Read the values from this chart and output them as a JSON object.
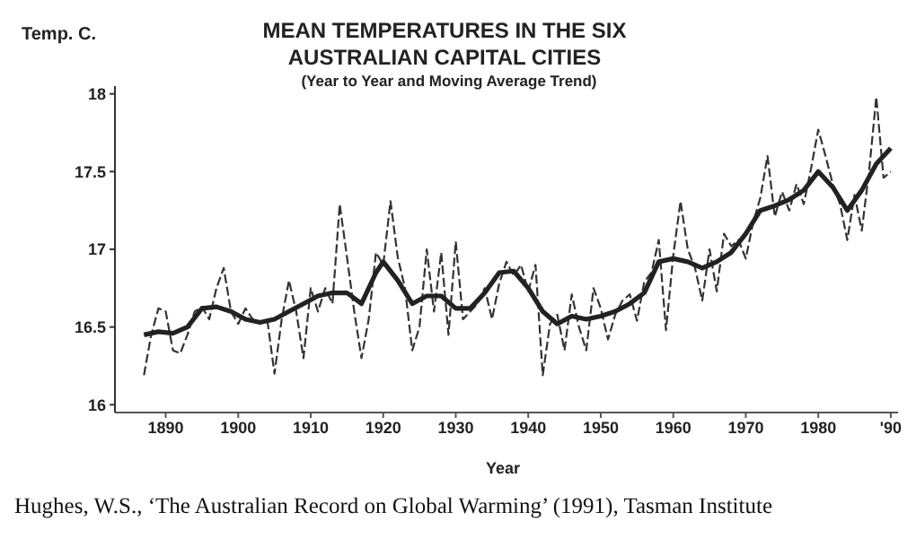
{
  "chart_data": {
    "type": "line",
    "title": "MEAN TEMPERATURES IN THE SIX AUSTRALIAN CAPITAL CITIES",
    "subtitle": "(Year to Year and Moving Average Trend)",
    "xlabel": "Year",
    "ylabel": "Temp. C.",
    "annotations": [
      "Hughes, W.S., ‘The Australian Record on Global Warming’ (1991), Tasman Institute"
    ],
    "xlim": [
      1883,
      1991
    ],
    "xticks": [
      1890,
      1900,
      1910,
      1920,
      1930,
      1940,
      1950,
      1960,
      1970,
      1980,
      {
        "value": 1990,
        "label": "'90"
      }
    ],
    "ylim": [
      15.95,
      18.05
    ],
    "yticks": [
      16,
      16.5,
      17,
      17.5,
      18
    ],
    "marker": "none",
    "series": [
      {
        "color": "#333333",
        "line_style": "dashed",
        "x": [
          1887,
          1888,
          1889,
          1890,
          1891,
          1892,
          1893,
          1894,
          1895,
          1896,
          1897,
          1898,
          1899,
          1900,
          1901,
          1902,
          1903,
          1904,
          1905,
          1906,
          1907,
          1908,
          1909,
          1910,
          1911,
          1912,
          1913,
          1914,
          1915,
          1916,
          1917,
          1918,
          1919,
          1920,
          1921,
          1922,
          1923,
          1924,
          1925,
          1926,
          1927,
          1928,
          1929,
          1930,
          1931,
          1932,
          1933,
          1934,
          1935,
          1936,
          1937,
          1938,
          1939,
          1940,
          1941,
          1942,
          1943,
          1944,
          1945,
          1946,
          1947,
          1948,
          1949,
          1950,
          1951,
          1952,
          1953,
          1954,
          1955,
          1956,
          1957,
          1958,
          1959,
          1960,
          1961,
          1962,
          1963,
          1964,
          1965,
          1966,
          1967,
          1968,
          1969,
          1970,
          1971,
          1972,
          1973,
          1974,
          1975,
          1976,
          1977,
          1978,
          1979,
          1980,
          1981,
          1982,
          1983,
          1984,
          1985,
          1986,
          1987,
          1988,
          1989,
          1990
        ],
        "values": [
          16.19,
          16.45,
          16.62,
          16.6,
          16.35,
          16.33,
          16.45,
          16.6,
          16.63,
          16.55,
          16.75,
          16.88,
          16.6,
          16.52,
          16.62,
          16.55,
          16.52,
          16.55,
          16.2,
          16.55,
          16.8,
          16.6,
          16.3,
          16.75,
          16.6,
          16.75,
          16.65,
          17.29,
          16.95,
          16.6,
          16.3,
          16.55,
          16.98,
          16.9,
          17.31,
          16.95,
          16.75,
          16.35,
          16.5,
          17.0,
          16.6,
          16.98,
          16.45,
          17.05,
          16.55,
          16.6,
          16.65,
          16.75,
          16.55,
          16.78,
          16.92,
          16.83,
          16.9,
          16.73,
          16.9,
          16.19,
          16.52,
          16.58,
          16.35,
          16.71,
          16.5,
          16.35,
          16.75,
          16.62,
          16.42,
          16.58,
          16.67,
          16.71,
          16.54,
          16.79,
          16.85,
          17.06,
          16.48,
          16.96,
          17.31,
          17.0,
          16.88,
          16.67,
          17.0,
          16.73,
          17.1,
          17.02,
          17.06,
          16.94,
          17.17,
          17.33,
          17.6,
          17.21,
          17.37,
          17.25,
          17.42,
          17.29,
          17.52,
          17.77,
          17.6,
          17.42,
          17.29,
          17.06,
          17.35,
          17.12,
          17.5,
          17.98,
          17.46,
          17.5
        ]
      },
      {
        "color": "#222222",
        "line_style": "solid",
        "x": [
          1887,
          1889,
          1891,
          1893,
          1895,
          1897,
          1899,
          1901,
          1903,
          1905,
          1907,
          1909,
          1911,
          1913,
          1915,
          1917,
          1919,
          1920,
          1922,
          1924,
          1926,
          1928,
          1930,
          1932,
          1934,
          1936,
          1938,
          1940,
          1942,
          1944,
          1946,
          1948,
          1950,
          1952,
          1954,
          1956,
          1958,
          1960,
          1962,
          1964,
          1966,
          1968,
          1970,
          1972,
          1974,
          1976,
          1978,
          1980,
          1982,
          1984,
          1986,
          1988,
          1990
        ],
        "values": [
          16.45,
          16.47,
          16.46,
          16.5,
          16.62,
          16.63,
          16.6,
          16.55,
          16.53,
          16.55,
          16.6,
          16.65,
          16.7,
          16.72,
          16.72,
          16.65,
          16.85,
          16.92,
          16.8,
          16.65,
          16.7,
          16.7,
          16.62,
          16.62,
          16.72,
          16.85,
          16.86,
          16.75,
          16.6,
          16.52,
          16.57,
          16.55,
          16.57,
          16.6,
          16.65,
          16.72,
          16.92,
          16.94,
          16.92,
          16.88,
          16.92,
          16.98,
          17.1,
          17.25,
          17.28,
          17.32,
          17.38,
          17.5,
          17.4,
          17.25,
          17.38,
          17.55,
          17.65
        ]
      }
    ]
  }
}
